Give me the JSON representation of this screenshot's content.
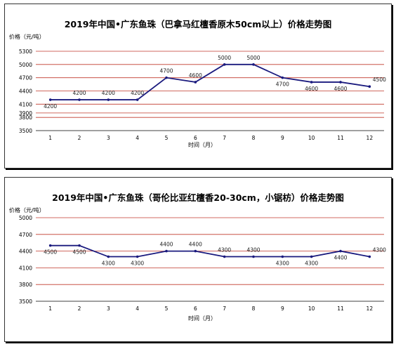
{
  "chart_data": [
    {
      "type": "line",
      "title": "2019年中国•广东鱼珠（巴拿马红檀香原木50cm以上）价格走势图",
      "ylabel": "价格（元/吨）",
      "xlabel": "时间（月）",
      "categories": [
        "1",
        "2",
        "3",
        "4",
        "5",
        "6",
        "7",
        "8",
        "9",
        "10",
        "11",
        "12"
      ],
      "ylim": [
        3500,
        5300
      ],
      "yticks": [
        "3500",
        "3800",
        "3900",
        "4100",
        "4400",
        "4700",
        "5000",
        "5300"
      ],
      "values": [
        4200,
        4200,
        4200,
        4200,
        4700,
        4600,
        5000,
        5000,
        4700,
        4600,
        4600,
        4500
      ],
      "colors": {
        "line": "#1a1a7e",
        "grid": "#c0392b"
      }
    },
    {
      "type": "line",
      "title": "2019年中国•广东鱼珠（哥伦比亚红檀香20-30cm，小锯枋）价格走势图",
      "ylabel": "价格（元/吨）",
      "xlabel": "时间（月）",
      "categories": [
        "1",
        "2",
        "3",
        "4",
        "5",
        "6",
        "7",
        "8",
        "9",
        "10",
        "11",
        "12"
      ],
      "ylim": [
        3500,
        5000
      ],
      "yticks": [
        "3500",
        "3800",
        "4100",
        "4400",
        "4700",
        "5000"
      ],
      "values": [
        4500,
        4500,
        4300,
        4300,
        4400,
        4400,
        4300,
        4300,
        4300,
        4300,
        4400,
        4300
      ],
      "colors": {
        "line": "#1a1a7e",
        "grid": "#c0392b"
      }
    }
  ]
}
